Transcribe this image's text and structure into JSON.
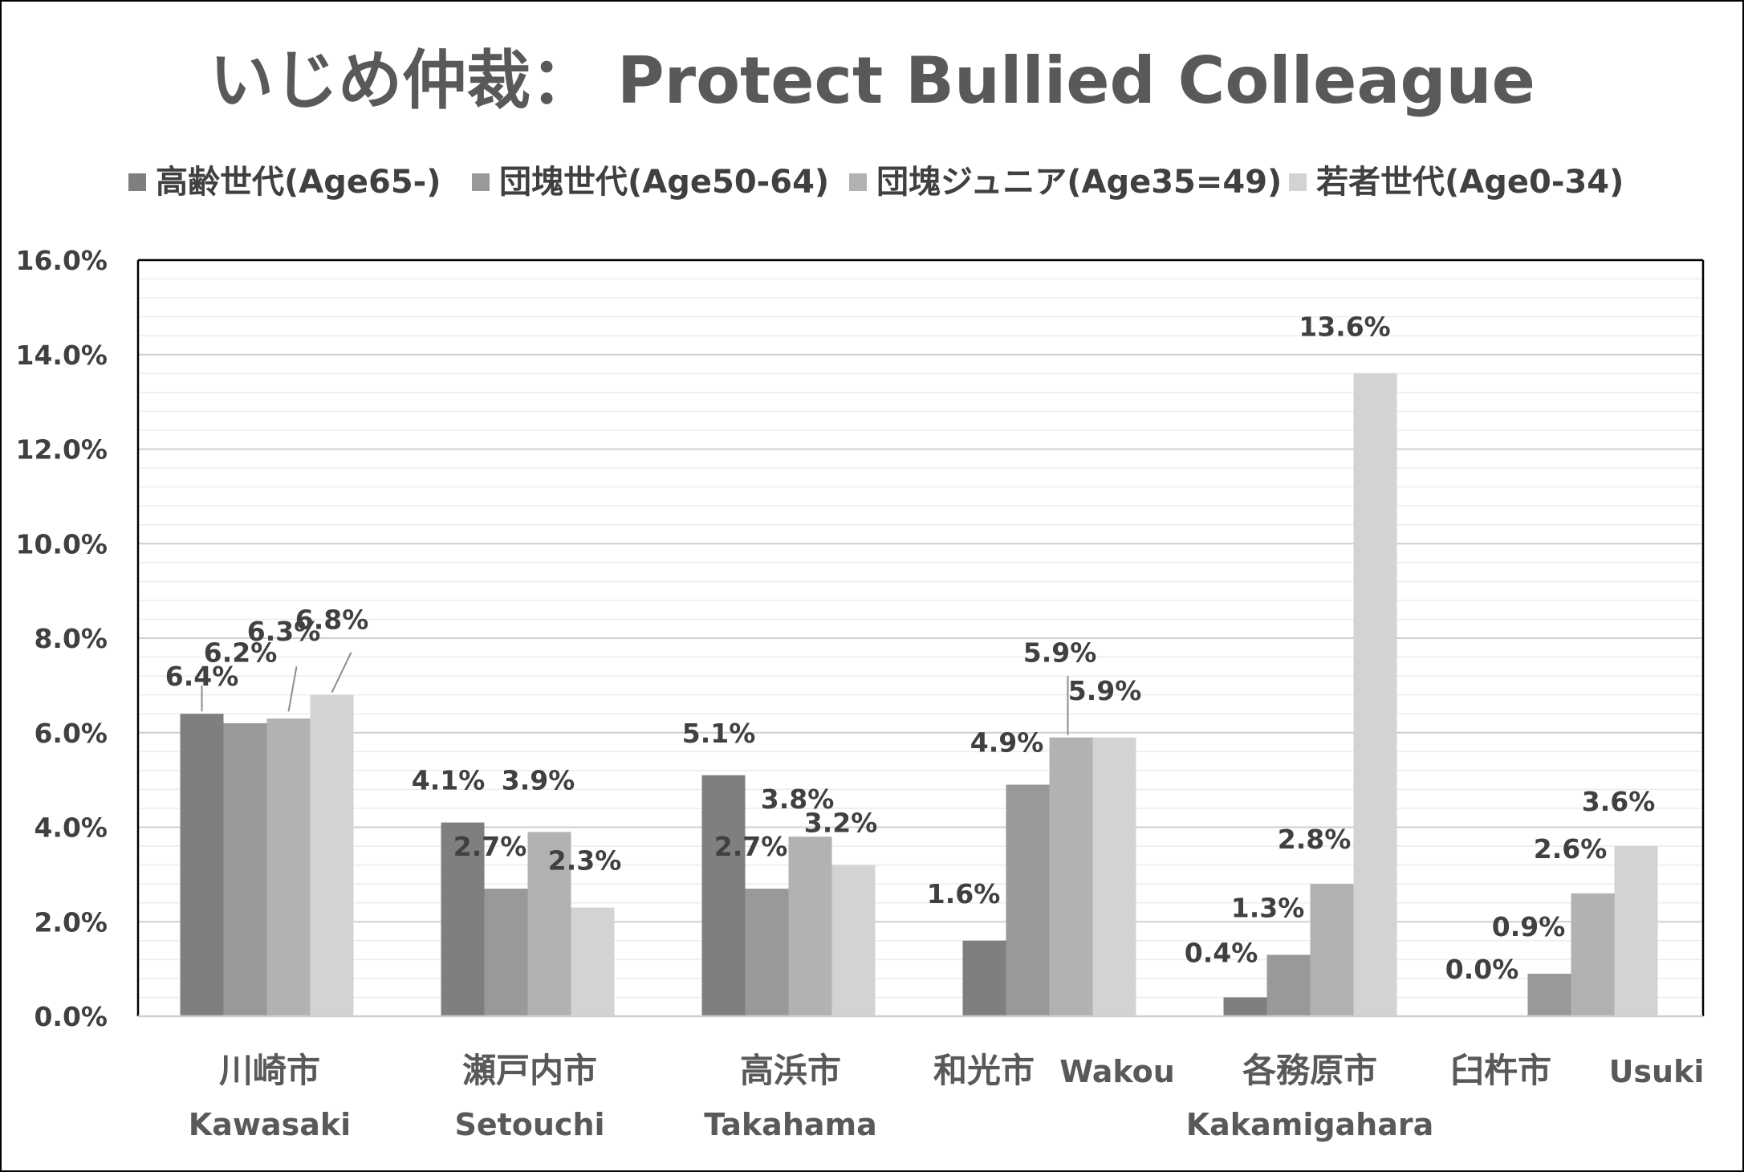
{
  "chart_data": {
    "type": "bar",
    "title": "いじめ仲裁： Protect Bullied Colleague",
    "categories": [
      {
        "jp": "川崎市",
        "en": "Kawasaki"
      },
      {
        "jp": "瀬戸内市",
        "en": "Setouchi"
      },
      {
        "jp": "高浜市",
        "en": "Takahama"
      },
      {
        "jp": "和光市",
        "en": "Wakou"
      },
      {
        "jp": "各務原市",
        "en": "Kakamigahara"
      },
      {
        "jp": "臼杵市",
        "en": "Usuki"
      }
    ],
    "series": [
      {
        "name": "高齢世代(Age65-)",
        "color": "#7f7f7f",
        "values": [
          6.4,
          4.1,
          5.1,
          1.6,
          0.4,
          0.0
        ],
        "labels": [
          "6.4%",
          "4.1%",
          "5.1%",
          "1.6%",
          "0.4%",
          "0.0%"
        ]
      },
      {
        "name": "団塊世代(Age50-64)",
        "color": "#999999",
        "values": [
          6.2,
          2.7,
          2.7,
          4.9,
          1.3,
          0.9
        ],
        "labels": [
          "6.2%",
          "2.7%",
          "2.7%",
          "4.9%",
          "1.3%",
          "0.9%"
        ]
      },
      {
        "name": "団塊ジュニア(Age35=49)",
        "color": "#b2b2b2",
        "values": [
          6.3,
          3.9,
          3.8,
          5.9,
          2.8,
          2.6
        ],
        "labels": [
          "6.3%",
          "3.9%",
          "3.8%",
          "5.9%",
          "2.8%",
          "2.6%"
        ]
      },
      {
        "name": "若者世代(Age0-34)",
        "color": "#d3d3d3",
        "values": [
          6.8,
          2.3,
          3.2,
          5.9,
          13.6,
          3.6
        ],
        "labels": [
          "6.8%",
          "2.3%",
          "3.2%",
          "5.9%",
          "13.6%",
          "3.6%"
        ]
      }
    ],
    "y_ticks": [
      "0.0%",
      "2.0%",
      "4.0%",
      "6.0%",
      "8.0%",
      "10.0%",
      "12.0%",
      "14.0%",
      "16.0%"
    ],
    "ylim": [
      0,
      16
    ],
    "grid": true,
    "legend_position": "top"
  }
}
